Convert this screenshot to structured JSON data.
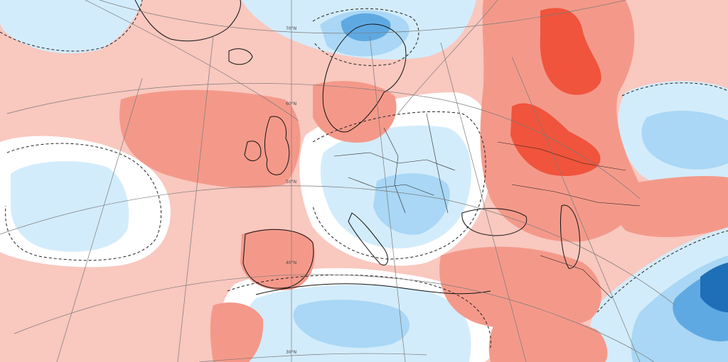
{
  "map": {
    "lat_labels": [
      "70°N",
      "60°N",
      "50°N",
      "40°N",
      "30°N"
    ],
    "colors": {
      "strong_warm": "#f0543c",
      "warm": "#f4998a",
      "light_warm": "#f9c8bf",
      "neutral": "#ffffff",
      "light_cool": "#d3ecfb",
      "cool": "#a9d7f5",
      "strong_cool": "#5fa9e3",
      "very_strong_cool": "#1f6fb8",
      "coast": "#111111",
      "border": "#222222",
      "graticule": "#7a7a7a"
    }
  }
}
